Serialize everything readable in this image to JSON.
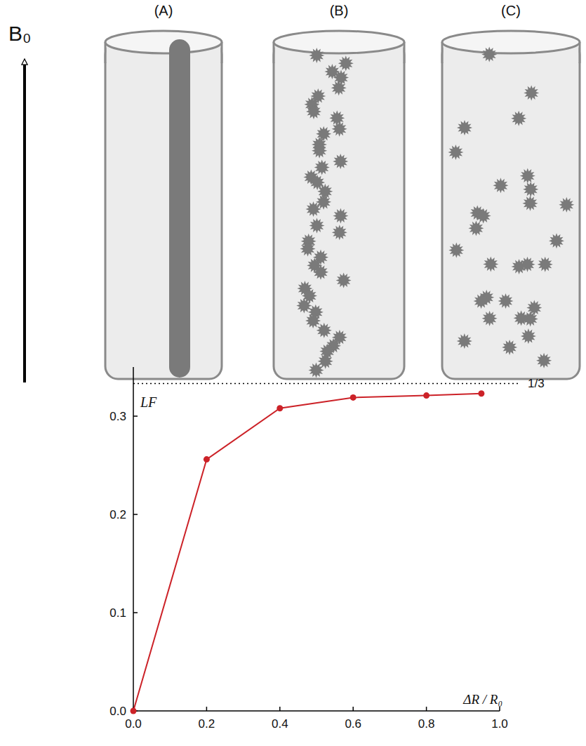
{
  "diagram": {
    "field_label": "B₀",
    "panels": [
      {
        "label": "(A)"
      },
      {
        "label": "(B)"
      },
      {
        "label": "(C)"
      }
    ]
  },
  "chart_data": {
    "type": "line",
    "x_label": "ΔR / R₀",
    "y_label": "LF",
    "x": [
      0.0,
      0.2,
      0.4,
      0.6,
      0.8,
      0.95
    ],
    "series": [
      {
        "name": "LF",
        "color": "#cc2228",
        "marker": "circle",
        "line_style": "solid",
        "values": [
          0.0,
          0.256,
          0.308,
          0.319,
          0.321,
          0.323
        ]
      }
    ],
    "reference_lines": [
      {
        "value": 0.3333,
        "label": "1/3"
      }
    ],
    "xlim": [
      0.0,
      1.0
    ],
    "ylim": [
      0.0,
      0.35
    ],
    "xticks": [
      {
        "value": 0,
        "label": "0.0"
      },
      {
        "value": 0.2,
        "label": "0.2"
      },
      {
        "value": 0.4,
        "label": "0.4"
      },
      {
        "value": 0.6,
        "label": "0.6"
      },
      {
        "value": 0.8,
        "label": "0.8"
      },
      {
        "value": 1,
        "label": "1.0"
      }
    ],
    "yticks": [
      {
        "value": 0,
        "label": "0.0"
      },
      {
        "value": 0.1,
        "label": "0.1"
      },
      {
        "value": 0.2,
        "label": "0.2"
      },
      {
        "value": 0.3,
        "label": "0.3"
      }
    ],
    "grid": false
  }
}
